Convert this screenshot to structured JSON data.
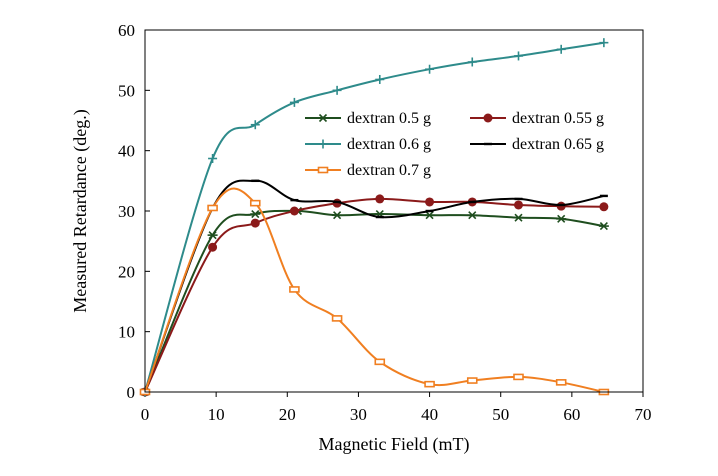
{
  "chart_data": {
    "type": "line",
    "title": "",
    "xlabel": "Magnetic Field (mT)",
    "ylabel": "Measured Retardance  (deg.)",
    "xlim": [
      0,
      70
    ],
    "ylim": [
      0,
      60
    ],
    "xticks": [
      0,
      10,
      20,
      30,
      40,
      50,
      60,
      70
    ],
    "yticks": [
      0,
      10,
      20,
      30,
      40,
      50,
      60
    ],
    "grid": false,
    "legend_position": "inside-right",
    "series": [
      {
        "name": "dextran 0.5  g",
        "color": "#1f4e1f",
        "marker": "asterisk",
        "x": [
          0,
          9.5,
          15.5,
          21.5,
          27,
          33,
          40,
          46,
          52.5,
          58.5,
          64.5
        ],
        "y": [
          0,
          26,
          29.5,
          30,
          29.3,
          29.5,
          29.3,
          29.3,
          28.9,
          28.7,
          27.5
        ]
      },
      {
        "name": "dextran 0.55 g",
        "color": "#8b1a1a",
        "marker": "circle",
        "x": [
          0,
          9.5,
          15.5,
          21,
          27,
          33,
          40,
          46,
          52.5,
          58.5,
          64.5
        ],
        "y": [
          0,
          24,
          28,
          30,
          31.3,
          32,
          31.5,
          31.5,
          31,
          30.8,
          30.7
        ]
      },
      {
        "name": "dextran 0.6  g",
        "color": "#2e8b8b",
        "marker": "plus",
        "x": [
          0,
          9.5,
          15.5,
          21,
          27,
          33,
          40,
          46,
          52.5,
          58.5,
          64.5
        ],
        "y": [
          0,
          38.7,
          44.3,
          48,
          50,
          51.8,
          53.5,
          54.7,
          55.7,
          56.8,
          57.9
        ]
      },
      {
        "name": "dextran 0.65 g",
        "color": "#000000",
        "marker": "dash",
        "x": [
          0,
          9.5,
          15.5,
          21,
          27,
          33,
          40,
          46,
          52.5,
          58.5,
          64.5
        ],
        "y": [
          0,
          30.5,
          35,
          31.8,
          31.5,
          29,
          30,
          31.5,
          32,
          31,
          32.5
        ]
      },
      {
        "name": "dextran 0.7  g",
        "color": "#f07f21",
        "marker": "square",
        "x": [
          0,
          9.5,
          15.5,
          21,
          27,
          33,
          40,
          46,
          52.5,
          58.5,
          64.5
        ],
        "y": [
          0,
          30.5,
          31.3,
          17,
          12.2,
          5,
          1.3,
          1.9,
          2.5,
          1.6,
          0
        ]
      }
    ]
  }
}
